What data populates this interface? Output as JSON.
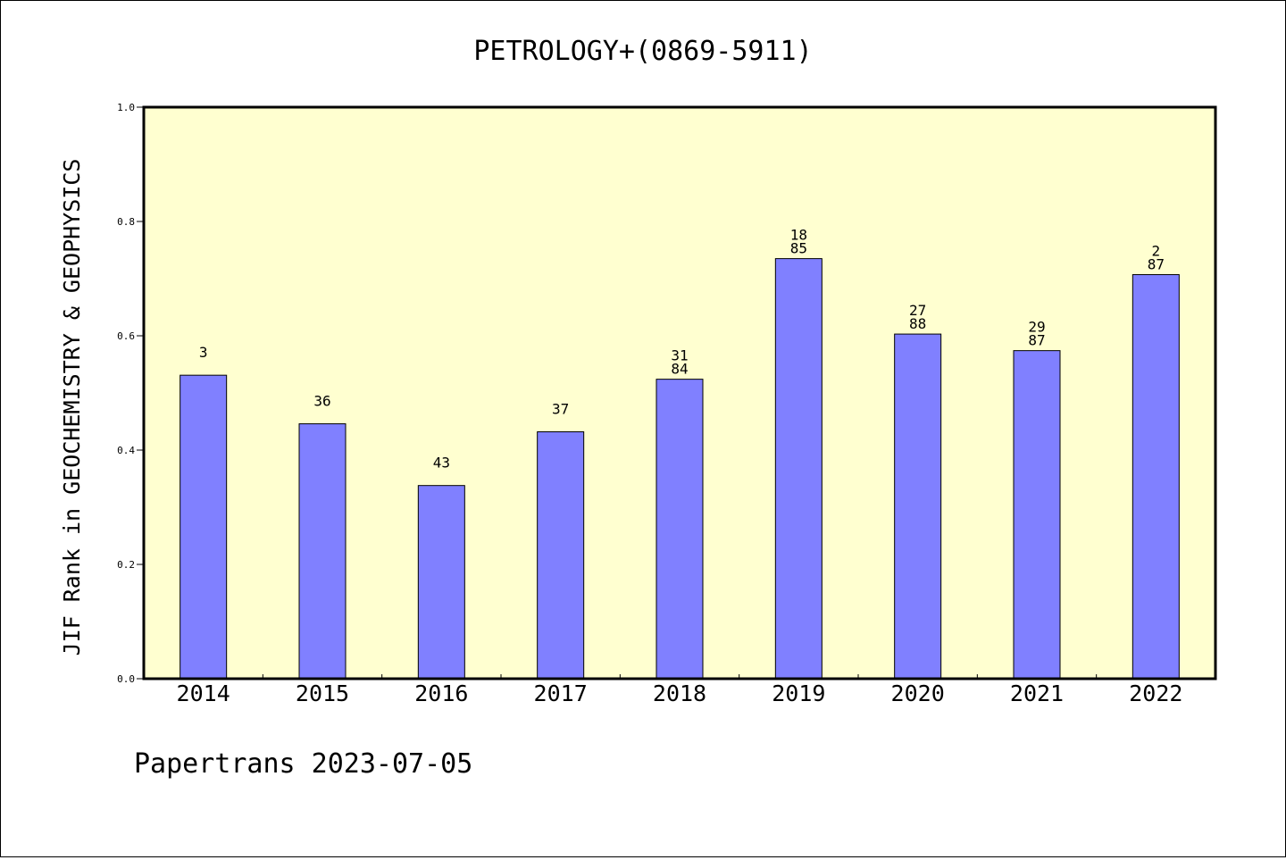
{
  "chart_data": {
    "type": "bar",
    "title": "PETROLOGY+(0869-5911)",
    "xlabel": "",
    "ylabel": "JIF Rank in GEOCHEMISTRY & GEOPHYSICS",
    "ylim": [
      0,
      1.0
    ],
    "yticks": [
      "0.0",
      "0.2",
      "0.4",
      "0.6",
      "0.8",
      "1.0"
    ],
    "categories": [
      "2014",
      "2015",
      "2016",
      "2017",
      "2018",
      "2019",
      "2020",
      "2021",
      "2022"
    ],
    "values": [
      0.531,
      0.446,
      0.338,
      0.432,
      0.524,
      0.735,
      0.603,
      0.574,
      0.707
    ],
    "bar_labels": [
      [
        "3"
      ],
      [
        "36"
      ],
      [
        "43"
      ],
      [
        "37"
      ],
      [
        "31",
        "84"
      ],
      [
        "18",
        "85"
      ],
      [
        "27",
        "88"
      ],
      [
        "29",
        "87"
      ],
      [
        "2",
        "87"
      ]
    ],
    "grid": false,
    "legend": "none",
    "colors": {
      "bar": "#8080ff",
      "plot_background": "#ffffd0",
      "axis": "#000000"
    }
  },
  "footer": {
    "text": "Papertrans 2023-07-05"
  }
}
